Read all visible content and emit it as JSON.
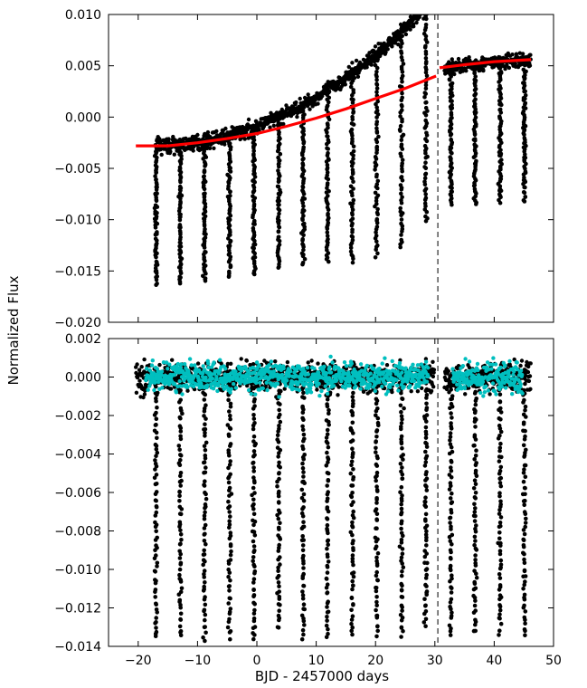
{
  "chart_data": {
    "type": "scatter",
    "shared_xlabel": "BJD - 2457000 days",
    "shared_ylabel": "Normalized Flux",
    "xlim": [
      -25,
      50
    ],
    "xticks": [
      -20,
      -10,
      0,
      10,
      20,
      30,
      40,
      50
    ],
    "marker_line_x": 30.5,
    "transit_times": [
      -17.0,
      -12.9,
      -8.8,
      -4.6,
      -0.5,
      3.7,
      7.8,
      11.9,
      16.1,
      20.2,
      24.4,
      28.5,
      32.7,
      36.8,
      41.0,
      45.1
    ],
    "panels": [
      {
        "id": "top",
        "ylim": [
          -0.02,
          0.01
        ],
        "yticks": [
          -0.02,
          -0.015,
          -0.01,
          -0.005,
          0.0,
          0.005,
          0.01
        ],
        "ytick_labels": [
          "−0.020",
          "−0.015",
          "−0.010",
          "−0.005",
          "0.000",
          "0.005",
          "0.010"
        ],
        "series": [
          {
            "kind": "points",
            "color": "#000000",
            "data_x_range": [
              -20.4,
              46.2
            ],
            "baseline_note_hidden": true,
            "transit_depth_min": [
              -0.0163,
              -0.0162,
              -0.016,
              -0.0156,
              -0.0154,
              -0.0147,
              -0.0143,
              -0.0142,
              -0.0142,
              -0.0136,
              -0.0127,
              -0.0102,
              -0.0085,
              -0.0085,
              -0.0083,
              -0.0082
            ]
          },
          {
            "kind": "trend",
            "color": "#ff0000",
            "points": [
              [
                -20.4,
                -0.0028
              ],
              [
                -15,
                -0.0028
              ],
              [
                -10,
                -0.0025
              ],
              [
                -5,
                -0.0021
              ],
              [
                0,
                -0.0016
              ],
              [
                5,
                -0.0009
              ],
              [
                10,
                -0.0001
              ],
              [
                15,
                0.0008
              ],
              [
                20,
                0.0018
              ],
              [
                25,
                0.0028
              ],
              [
                30.2,
                0.004
              ],
              [
                30.8,
                0.0048
              ],
              [
                35,
                0.0051
              ],
              [
                40,
                0.0054
              ],
              [
                46.2,
                0.0056
              ]
            ]
          }
        ]
      },
      {
        "id": "bottom",
        "ylim": [
          -0.014,
          0.002
        ],
        "yticks": [
          -0.014,
          -0.012,
          -0.01,
          -0.008,
          -0.006,
          -0.004,
          -0.002,
          0.0,
          0.002
        ],
        "ytick_labels": [
          "−0.014",
          "−0.012",
          "−0.010",
          "−0.008",
          "−0.006",
          "−0.004",
          "−0.002",
          "0.000",
          "0.002"
        ],
        "series": [
          {
            "kind": "points",
            "color": "#000000",
            "data_x_range": [
              -20.4,
              46.2
            ],
            "transit_depth_min": [
              -0.0136,
              -0.0135,
              -0.0136,
              -0.0135,
              -0.0137,
              -0.0131,
              -0.0135,
              -0.0135,
              -0.0133,
              -0.0134,
              -0.0135,
              -0.0129,
              -0.0134,
              -0.0133,
              -0.0133,
              -0.0134
            ]
          },
          {
            "kind": "points",
            "color": "#00bfbf",
            "segments": [
              [
                -18.7,
                28.9
              ],
              [
                33.0,
                44.8
              ]
            ],
            "band": [
              -0.001,
              0.001
            ]
          }
        ]
      }
    ]
  }
}
